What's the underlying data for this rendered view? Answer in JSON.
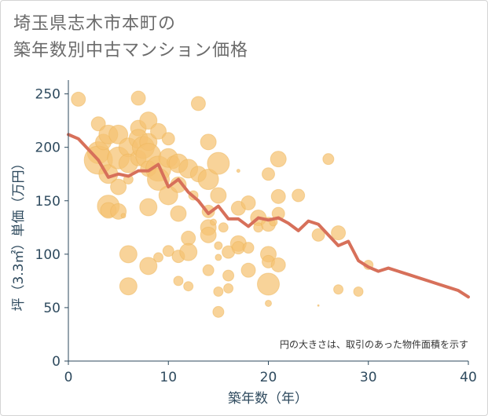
{
  "title_lines": [
    "埼玉県志木市本町の",
    "築年数別中古マンション価格"
  ],
  "colors": {
    "bubble": "#f5c271",
    "bubble_stroke": "#eeb55a",
    "line": "#d7705a",
    "axis": "#2e4a5e",
    "grid": "#e6e6e6"
  },
  "chart_data": {
    "type": "scatter",
    "title": "埼玉県志木市本町の 築年数別中古マンション価格",
    "xlabel": "築年数（年）",
    "ylabel": "坪（3.3㎡）単価（万円）",
    "xlim": [
      0,
      40
    ],
    "ylim": [
      0,
      260
    ],
    "x_ticks": [
      "0",
      "10",
      "20",
      "30",
      "40"
    ],
    "y_ticks": [
      "0",
      "50",
      "100",
      "150",
      "200",
      "250"
    ],
    "grid": false,
    "note": "円の大きさは、取引のあった物件面積を示す",
    "bubbles": [
      {
        "x": 1,
        "y": 245,
        "r": 9
      },
      {
        "x": 3,
        "y": 222,
        "r": 9
      },
      {
        "x": 3,
        "y": 195,
        "r": 14
      },
      {
        "x": 3,
        "y": 188,
        "r": 18
      },
      {
        "x": 3.5,
        "y": 205,
        "r": 10
      },
      {
        "x": 4,
        "y": 212,
        "r": 12
      },
      {
        "x": 4,
        "y": 175,
        "r": 12
      },
      {
        "x": 4,
        "y": 145,
        "r": 14
      },
      {
        "x": 4,
        "y": 141,
        "r": 10
      },
      {
        "x": 5,
        "y": 212,
        "r": 12
      },
      {
        "x": 5,
        "y": 190,
        "r": 14
      },
      {
        "x": 5,
        "y": 163,
        "r": 10
      },
      {
        "x": 5,
        "y": 140,
        "r": 10
      },
      {
        "x": 5.5,
        "y": 136,
        "r": 3
      },
      {
        "x": 6,
        "y": 200,
        "r": 12
      },
      {
        "x": 6,
        "y": 185,
        "r": 12
      },
      {
        "x": 6,
        "y": 170,
        "r": 6
      },
      {
        "x": 6,
        "y": 100,
        "r": 11
      },
      {
        "x": 6,
        "y": 70,
        "r": 11
      },
      {
        "x": 7,
        "y": 246,
        "r": 9
      },
      {
        "x": 7,
        "y": 218,
        "r": 10
      },
      {
        "x": 7,
        "y": 208,
        "r": 12
      },
      {
        "x": 7,
        "y": 190,
        "r": 10
      },
      {
        "x": 7.5,
        "y": 200,
        "r": 14
      },
      {
        "x": 8,
        "y": 225,
        "r": 11
      },
      {
        "x": 8,
        "y": 205,
        "r": 11
      },
      {
        "x": 8,
        "y": 192,
        "r": 16
      },
      {
        "x": 8,
        "y": 180,
        "r": 10
      },
      {
        "x": 8,
        "y": 144,
        "r": 11
      },
      {
        "x": 8,
        "y": 89,
        "r": 11
      },
      {
        "x": 9,
        "y": 215,
        "r": 10
      },
      {
        "x": 9,
        "y": 180,
        "r": 16
      },
      {
        "x": 9,
        "y": 170,
        "r": 14
      },
      {
        "x": 9,
        "y": 97,
        "r": 6
      },
      {
        "x": 10,
        "y": 208,
        "r": 8
      },
      {
        "x": 10,
        "y": 190,
        "r": 12
      },
      {
        "x": 10,
        "y": 155,
        "r": 12
      },
      {
        "x": 10,
        "y": 103,
        "r": 7
      },
      {
        "x": 10.5,
        "y": 186,
        "r": 8
      },
      {
        "x": 11,
        "y": 185,
        "r": 12
      },
      {
        "x": 11,
        "y": 165,
        "r": 10
      },
      {
        "x": 11,
        "y": 138,
        "r": 10
      },
      {
        "x": 11,
        "y": 98,
        "r": 8
      },
      {
        "x": 11,
        "y": 75,
        "r": 6
      },
      {
        "x": 12,
        "y": 180,
        "r": 12
      },
      {
        "x": 12,
        "y": 115,
        "r": 9
      },
      {
        "x": 12,
        "y": 102,
        "r": 11
      },
      {
        "x": 12,
        "y": 70,
        "r": 6
      },
      {
        "x": 12.5,
        "y": 155,
        "r": 6
      },
      {
        "x": 13,
        "y": 241,
        "r": 9
      },
      {
        "x": 13,
        "y": 175,
        "r": 10
      },
      {
        "x": 14,
        "y": 205,
        "r": 10
      },
      {
        "x": 14,
        "y": 170,
        "r": 13
      },
      {
        "x": 14,
        "y": 140,
        "r": 8
      },
      {
        "x": 14,
        "y": 125,
        "r": 10
      },
      {
        "x": 14,
        "y": 118,
        "r": 10
      },
      {
        "x": 14,
        "y": 85,
        "r": 7
      },
      {
        "x": 14.5,
        "y": 130,
        "r": 4
      },
      {
        "x": 15,
        "y": 185,
        "r": 14
      },
      {
        "x": 15,
        "y": 155,
        "r": 10
      },
      {
        "x": 15,
        "y": 108,
        "r": 5
      },
      {
        "x": 15,
        "y": 65,
        "r": 6
      },
      {
        "x": 15,
        "y": 46,
        "r": 7
      },
      {
        "x": 15,
        "y": 97,
        "r": 4
      },
      {
        "x": 15.5,
        "y": 125,
        "r": 6
      },
      {
        "x": 16,
        "y": 102,
        "r": 8
      },
      {
        "x": 16,
        "y": 80,
        "r": 7
      },
      {
        "x": 16,
        "y": 68,
        "r": 6
      },
      {
        "x": 17,
        "y": 143,
        "r": 9
      },
      {
        "x": 17,
        "y": 110,
        "r": 10
      },
      {
        "x": 17,
        "y": 106,
        "r": 8
      },
      {
        "x": 17,
        "y": 178,
        "r": 2
      },
      {
        "x": 18,
        "y": 148,
        "r": 9
      },
      {
        "x": 18,
        "y": 106,
        "r": 7
      },
      {
        "x": 18,
        "y": 85,
        "r": 9
      },
      {
        "x": 19,
        "y": 134,
        "r": 10
      },
      {
        "x": 19,
        "y": 125,
        "r": 6
      },
      {
        "x": 20,
        "y": 175,
        "r": 8
      },
      {
        "x": 20,
        "y": 128,
        "r": 9
      },
      {
        "x": 20,
        "y": 100,
        "r": 10
      },
      {
        "x": 20,
        "y": 93,
        "r": 8
      },
      {
        "x": 20,
        "y": 72,
        "r": 14
      },
      {
        "x": 20,
        "y": 54,
        "r": 4
      },
      {
        "x": 20.5,
        "y": 130,
        "r": 5
      },
      {
        "x": 21,
        "y": 189,
        "r": 10
      },
      {
        "x": 21,
        "y": 154,
        "r": 9
      },
      {
        "x": 21,
        "y": 138,
        "r": 8
      },
      {
        "x": 21,
        "y": 90,
        "r": 9
      },
      {
        "x": 23,
        "y": 155,
        "r": 8
      },
      {
        "x": 25,
        "y": 118,
        "r": 8
      },
      {
        "x": 26,
        "y": 189,
        "r": 7
      },
      {
        "x": 27,
        "y": 120,
        "r": 9
      },
      {
        "x": 27,
        "y": 67,
        "r": 6
      },
      {
        "x": 29,
        "y": 65,
        "r": 6
      },
      {
        "x": 30,
        "y": 90,
        "r": 6
      },
      {
        "x": 25,
        "y": 52,
        "r": 1
      }
    ],
    "series": [
      {
        "type": "line",
        "x": [
          0,
          1,
          2,
          3,
          4,
          5,
          6,
          7,
          8,
          9,
          10,
          11,
          12,
          13,
          14,
          15,
          16,
          17,
          18,
          19,
          20,
          21,
          22,
          23,
          24,
          25,
          26,
          27,
          28,
          29,
          30,
          31,
          32,
          33,
          34,
          35,
          36,
          37,
          38,
          39,
          40
        ],
        "y": [
          212,
          208,
          198,
          188,
          172,
          175,
          173,
          178,
          178,
          184,
          163,
          170,
          158,
          150,
          138,
          145,
          133,
          133,
          126,
          134,
          132,
          134,
          129,
          122,
          131,
          128,
          118,
          108,
          112,
          94,
          88,
          84,
          87,
          84,
          81,
          78,
          75,
          72,
          69,
          66,
          60
        ]
      }
    ]
  }
}
